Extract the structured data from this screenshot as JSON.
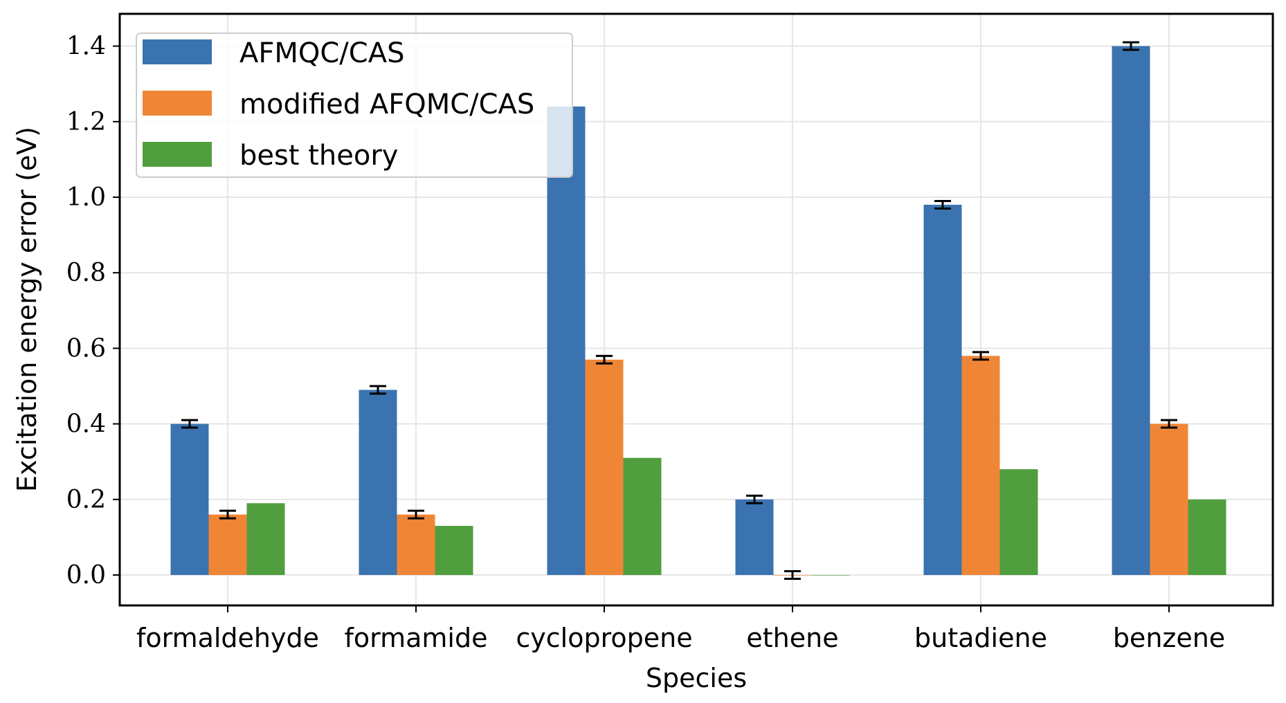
{
  "chart_data": {
    "type": "bar",
    "title": "",
    "xlabel": "Species",
    "ylabel": "Excitation energy error (eV)",
    "categories": [
      "formaldehyde",
      "formamide",
      "cyclopropene",
      "ethene",
      "butadiene",
      "benzene"
    ],
    "series": [
      {
        "name": "AFMQC/CAS",
        "color": "#3a73b0",
        "values": [
          0.4,
          0.49,
          1.24,
          0.2,
          0.98,
          1.4
        ],
        "errors": [
          0.01,
          0.01,
          null,
          0.01,
          0.01,
          0.01
        ]
      },
      {
        "name": "modified AFQMC/CAS",
        "color": "#ef8636",
        "values": [
          0.16,
          0.16,
          0.57,
          0.0,
          0.58,
          0.4
        ],
        "errors": [
          0.01,
          0.01,
          0.01,
          0.01,
          0.01,
          0.01
        ]
      },
      {
        "name": "best theory",
        "color": "#519e3e",
        "values": [
          0.19,
          0.13,
          0.31,
          0.0,
          0.28,
          0.2
        ],
        "errors": [
          null,
          null,
          null,
          null,
          null,
          null
        ]
      }
    ],
    "yticks": [
      "0.0",
      "0.2",
      "0.4",
      "0.6",
      "0.8",
      "1.0",
      "1.2",
      "1.4"
    ],
    "ylim": [
      -0.08,
      1.48
    ],
    "grid": true,
    "legend_position": "top-left"
  }
}
